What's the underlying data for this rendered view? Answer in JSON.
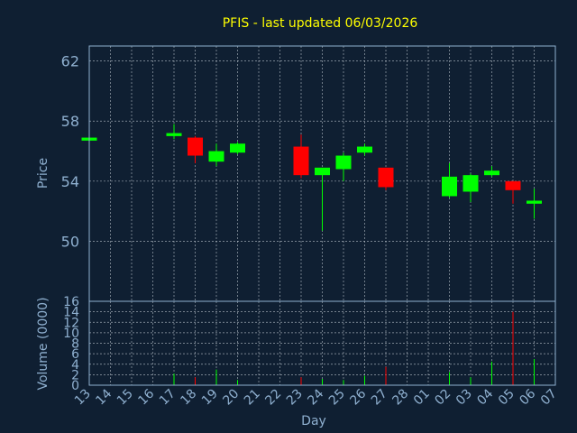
{
  "chart_data": {
    "type": "candlestick",
    "title": "PFIS - last updated 06/03/2026",
    "xlabel": "Day",
    "price_panel": {
      "ylabel": "Price",
      "yticks": [
        50,
        54,
        58,
        62
      ],
      "ylim": [
        46.0,
        63.0
      ],
      "grid": true
    },
    "volume_panel": {
      "ylabel": "Volume (0000)",
      "yticks": [
        0,
        2,
        4,
        6,
        8,
        10,
        12,
        14,
        16
      ],
      "ylim": [
        0,
        16
      ],
      "grid": true
    },
    "colors": {
      "background": "#0f1f32",
      "up": "#00ff00",
      "down": "#ff0000",
      "title": "#ffff00",
      "axis": "#8fb0d0"
    },
    "x_labels": [
      "13",
      "14",
      "15",
      "16",
      "17",
      "18",
      "19",
      "20",
      "21",
      "22",
      "23",
      "24",
      "25",
      "26",
      "27",
      "28",
      "01",
      "02",
      "03",
      "04",
      "05",
      "06",
      "07"
    ],
    "candles": [
      {
        "x": "13",
        "open": 56.7,
        "close": 56.9,
        "high": 56.9,
        "low": 56.7,
        "volume": 0.5
      },
      {
        "x": "17",
        "open": 57.0,
        "close": 57.2,
        "high": 57.8,
        "low": 56.8,
        "volume": 2.2
      },
      {
        "x": "18",
        "open": 56.9,
        "close": 55.7,
        "high": 57.0,
        "low": 55.2,
        "volume": 1.5
      },
      {
        "x": "19",
        "open": 55.3,
        "close": 56.0,
        "high": 56.5,
        "low": 55.0,
        "volume": 3.0
      },
      {
        "x": "20",
        "open": 55.9,
        "close": 56.5,
        "high": 56.6,
        "low": 55.8,
        "volume": 1.0
      },
      {
        "x": "23",
        "open": 56.3,
        "close": 54.4,
        "high": 57.1,
        "low": 54.2,
        "volume": 1.5
      },
      {
        "x": "24",
        "open": 54.4,
        "close": 54.9,
        "high": 54.9,
        "low": 50.7,
        "volume": 1.2
      },
      {
        "x": "25",
        "open": 54.8,
        "close": 55.7,
        "high": 55.9,
        "low": 54.0,
        "volume": 1.0
      },
      {
        "x": "26",
        "open": 55.9,
        "close": 56.3,
        "high": 56.5,
        "low": 55.7,
        "volume": 1.8
      },
      {
        "x": "27",
        "open": 54.9,
        "close": 53.6,
        "high": 54.9,
        "low": 53.4,
        "volume": 3.5
      },
      {
        "x": "02",
        "open": 53.0,
        "close": 54.3,
        "high": 55.2,
        "low": 52.9,
        "volume": 2.5
      },
      {
        "x": "03",
        "open": 53.3,
        "close": 54.4,
        "high": 54.5,
        "low": 52.6,
        "volume": 1.5
      },
      {
        "x": "04",
        "open": 54.4,
        "close": 54.7,
        "high": 55.0,
        "low": 54.3,
        "volume": 4.5
      },
      {
        "x": "05",
        "open": 54.0,
        "close": 53.4,
        "high": 54.0,
        "low": 52.5,
        "volume": 14.0
      },
      {
        "x": "06",
        "open": 52.5,
        "close": 52.7,
        "high": 53.5,
        "low": 51.5,
        "volume": 5.0
      }
    ]
  }
}
